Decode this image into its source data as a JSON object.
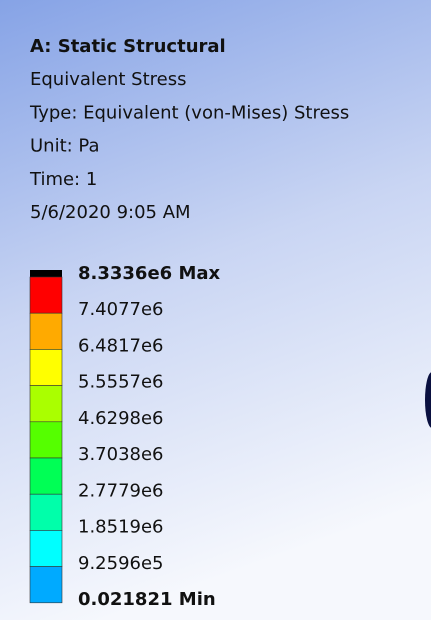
{
  "header": {
    "title": "A: Static Structural",
    "lines": [
      "Equivalent Stress",
      "Type: Equivalent (von-Mises) Stress",
      "Unit: Pa",
      "Time: 1",
      "5/6/2020 9:05 AM"
    ]
  },
  "legend": {
    "labels": [
      "8.3336e6 Max",
      "7.4077e6",
      "6.4817e6",
      "5.5557e6",
      "4.6298e6",
      "3.7038e6",
      "2.7779e6",
      "1.8519e6",
      "9.2596e5",
      "0.021821 Min"
    ],
    "colors": [
      "#ff0000",
      "#ffaa00",
      "#ffff00",
      "#aaff00",
      "#55ff00",
      "#00ff55",
      "#00ffaa",
      "#00ffff",
      "#00aaff",
      "#0000ff"
    ]
  }
}
